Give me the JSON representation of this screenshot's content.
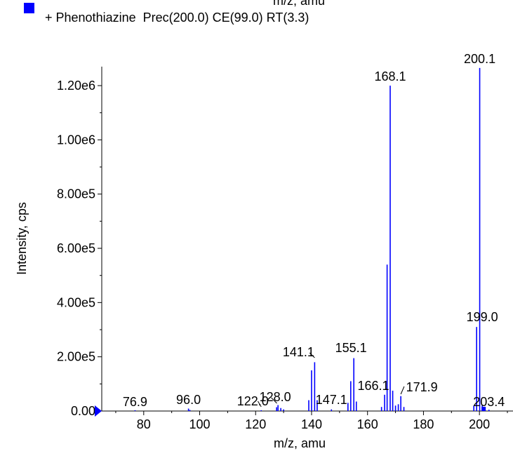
{
  "top_clip_text": "m/z, amu",
  "legend": {
    "text": "+ Phenothiazine  Prec(200.0) CE(99.0) RT(3.3)",
    "swatch_color": "#0000ff"
  },
  "chart_data": {
    "type": "bar",
    "series_color": "#0000ff",
    "xlabel": "m/z, amu",
    "ylabel": "Intensity, cps",
    "xlim": [
      65,
      212
    ],
    "ylim": [
      0,
      1270000
    ],
    "x_ticks": [
      80,
      100,
      120,
      140,
      160,
      180,
      200
    ],
    "y_ticks": [
      0,
      200000,
      400000,
      600000,
      800000,
      1000000,
      1200000
    ],
    "y_tick_labels": [
      "0.00",
      "2.00e5",
      "4.00e5",
      "6.00e5",
      "8.00e5",
      "1.00e6",
      "1.20e6"
    ],
    "grid": false,
    "peaks": [
      {
        "x": 76.9,
        "y": 3000
      },
      {
        "x": 96.0,
        "y": 9000
      },
      {
        "x": 96.5,
        "y": 4000
      },
      {
        "x": 122.0,
        "y": 3000
      },
      {
        "x": 127.5,
        "y": 14000
      },
      {
        "x": 128.0,
        "y": 22000
      },
      {
        "x": 129.0,
        "y": 11000
      },
      {
        "x": 130.0,
        "y": 6000
      },
      {
        "x": 139.0,
        "y": 40000
      },
      {
        "x": 140.0,
        "y": 150000
      },
      {
        "x": 141.1,
        "y": 180000
      },
      {
        "x": 142.0,
        "y": 40000
      },
      {
        "x": 147.1,
        "y": 6000
      },
      {
        "x": 153.0,
        "y": 30000
      },
      {
        "x": 154.0,
        "y": 110000
      },
      {
        "x": 155.1,
        "y": 195000
      },
      {
        "x": 156.0,
        "y": 35000
      },
      {
        "x": 165.0,
        "y": 15000
      },
      {
        "x": 166.1,
        "y": 60000
      },
      {
        "x": 167.0,
        "y": 540000
      },
      {
        "x": 168.1,
        "y": 1200000
      },
      {
        "x": 169.0,
        "y": 75000
      },
      {
        "x": 170.0,
        "y": 20000
      },
      {
        "x": 171.0,
        "y": 25000
      },
      {
        "x": 171.9,
        "y": 55000
      },
      {
        "x": 173.0,
        "y": 15000
      },
      {
        "x": 198.0,
        "y": 20000
      },
      {
        "x": 199.0,
        "y": 310000
      },
      {
        "x": 200.1,
        "y": 1265000
      },
      {
        "x": 201.0,
        "y": 20000
      },
      {
        "x": 202.0,
        "y": 10000
      },
      {
        "x": 203.4,
        "y": 5000
      }
    ],
    "annotations": [
      {
        "text": "76.9",
        "x": 76.9
      },
      {
        "text": "96.0",
        "x": 96.0
      },
      {
        "text": "122.0",
        "x": 122.0
      },
      {
        "text": "128.0",
        "x": 128.0
      },
      {
        "text": "141.1",
        "x": 141.1
      },
      {
        "text": "147.1",
        "x": 147.1
      },
      {
        "text": "155.1",
        "x": 155.1
      },
      {
        "text": "166.1",
        "x": 166.1
      },
      {
        "text": "168.1",
        "x": 168.1
      },
      {
        "text": "171.9",
        "x": 171.9
      },
      {
        "text": "199.0",
        "x": 199.0
      },
      {
        "text": "200.1",
        "x": 200.1
      },
      {
        "text": "203.4",
        "x": 203.4
      }
    ]
  }
}
